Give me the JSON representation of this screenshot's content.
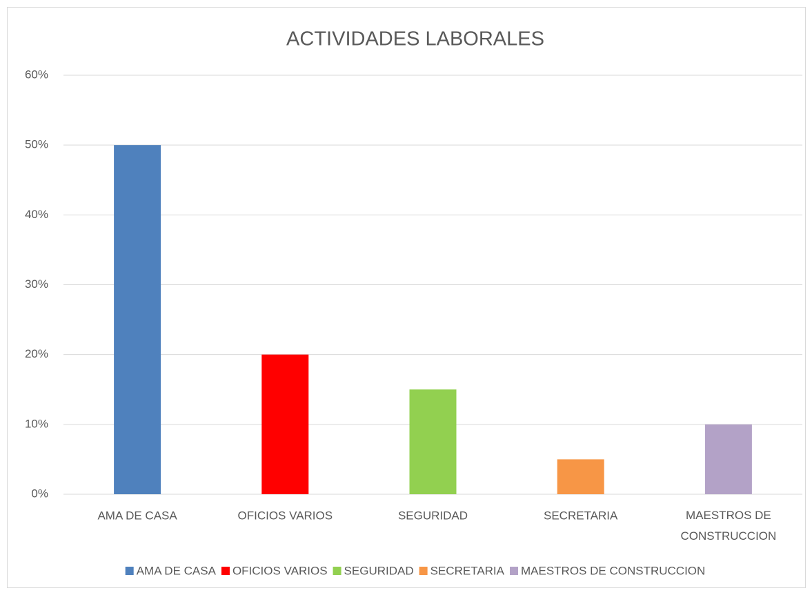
{
  "chart_data": {
    "type": "bar",
    "title": "ACTIVIDADES LABORALES",
    "categories": [
      "AMA DE CASA",
      "OFICIOS VARIOS",
      "SEGURIDAD",
      "SECRETARIA",
      "MAESTROS DE CONSTRUCCION"
    ],
    "values": [
      50,
      20,
      15,
      5,
      10
    ],
    "colors": [
      "#4f81bd",
      "#ff0000",
      "#92d050",
      "#f79646",
      "#b3a2c7"
    ],
    "ylim": [
      0,
      60
    ],
    "yticks": [
      {
        "value": 0,
        "label": "0%"
      },
      {
        "value": 10,
        "label": "10%"
      },
      {
        "value": 20,
        "label": "20%"
      },
      {
        "value": 30,
        "label": "30%"
      },
      {
        "value": 40,
        "label": "40%"
      },
      {
        "value": 50,
        "label": "50%"
      },
      {
        "value": 60,
        "label": "60%"
      }
    ],
    "grid": true,
    "legend": "bottom"
  }
}
